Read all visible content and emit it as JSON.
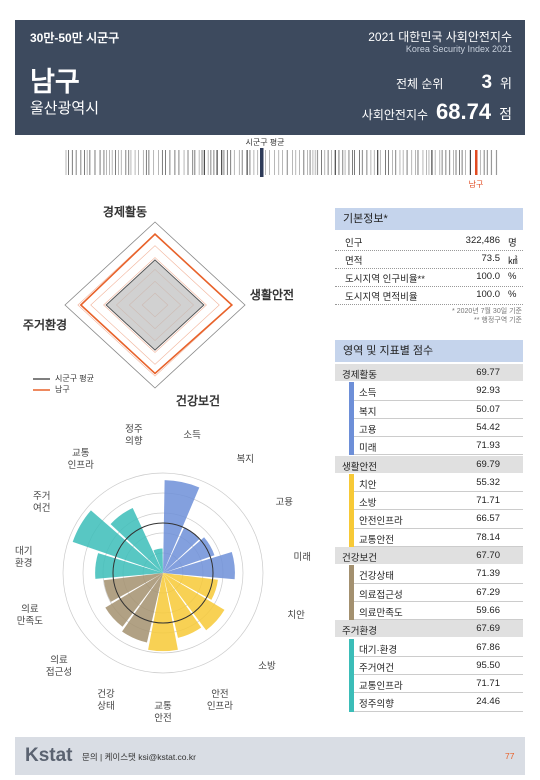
{
  "header": {
    "category": "30만-50만 시군구",
    "title": "2021 대한민국 사회안전지수",
    "subtitle": "Korea Security Index 2021",
    "region": "남구",
    "province": "울산광역시",
    "rank_label": "전체 순위",
    "rank": 3,
    "rank_unit": "위",
    "index_label": "사회안전지수",
    "index": 68.74,
    "index_unit": "점"
  },
  "distribution": {
    "avg_label": "시군구 평균",
    "self_label": "남구"
  },
  "radar": {
    "type": "radar",
    "axes": [
      "경제활동",
      "생활안전",
      "건강보건",
      "주거환경"
    ],
    "rlim": [
      10,
      80
    ],
    "rticks": [
      20,
      30,
      40,
      50,
      60,
      70,
      80
    ],
    "series": [
      {
        "name": "시군구 평균",
        "color": "#555555",
        "values": [
          48,
          48,
          48,
          48
        ]
      },
      {
        "name": "남구",
        "color": "#e8622a",
        "values": [
          69.77,
          69.79,
          67.7,
          67.69
        ]
      }
    ]
  },
  "basic_info": {
    "title": "기본정보*",
    "rows": [
      [
        "인구",
        "322,486",
        "명"
      ],
      [
        "면적",
        "73.5",
        "㎢"
      ],
      [
        "도시지역 인구비율**",
        "100.0",
        "%"
      ],
      [
        "도시지역 면적비율",
        "100.0",
        "%"
      ]
    ],
    "notes": [
      "* 2020년 7월 30일 기준",
      "** 행정구역 기준"
    ]
  },
  "scores": {
    "title": "영역 및 지표별 점수",
    "groups": [
      {
        "name": "경제활동",
        "score": "69.77",
        "color": "#6d8fd8",
        "indicators": [
          {
            "name": "소득",
            "value": "92.93"
          },
          {
            "name": "복지",
            "value": "50.07"
          },
          {
            "name": "고용",
            "value": "54.42"
          },
          {
            "name": "미래",
            "value": "71.93"
          }
        ]
      },
      {
        "name": "생활안전",
        "score": "69.79",
        "color": "#f7c936",
        "indicators": [
          {
            "name": "치안",
            "value": "55.32"
          },
          {
            "name": "소방",
            "value": "71.71"
          },
          {
            "name": "안전인프라",
            "value": "66.57"
          },
          {
            "name": "교통안전",
            "value": "78.14"
          }
        ]
      },
      {
        "name": "건강보건",
        "score": "67.70",
        "color": "#a3906f",
        "indicators": [
          {
            "name": "건강상태",
            "value": "71.39"
          },
          {
            "name": "의료접근성",
            "value": "67.29"
          },
          {
            "name": "의료만족도",
            "value": "59.66"
          }
        ]
      },
      {
        "name": "주거환경",
        "score": "67.69",
        "color": "#3bbdb8",
        "indicators": [
          {
            "name": "대기·환경",
            "value": "67.86"
          },
          {
            "name": "주거여건",
            "value": "95.50"
          },
          {
            "name": "교통인프라",
            "value": "71.71"
          },
          {
            "name": "정주의향",
            "value": "24.46"
          }
        ]
      }
    ]
  },
  "rose": {
    "type": "rose",
    "rlim": [
      0,
      100
    ],
    "rticks": [
      20,
      40,
      60,
      80,
      100
    ],
    "labels": [
      "소득",
      "복지",
      "고용",
      "미래",
      "치안",
      "소방",
      "안전\n인프라",
      "교통\n안전",
      "건강\n상태",
      "의료\n접근성",
      "의료\n만족도",
      "대기\n환경",
      "주거\n여건",
      "교통\n인프라",
      "정주\n의향"
    ]
  },
  "footer": {
    "logo": "Kstat",
    "contact": "문의 | 케이스탯 ksi@kstat.co.kr",
    "page": 77
  }
}
